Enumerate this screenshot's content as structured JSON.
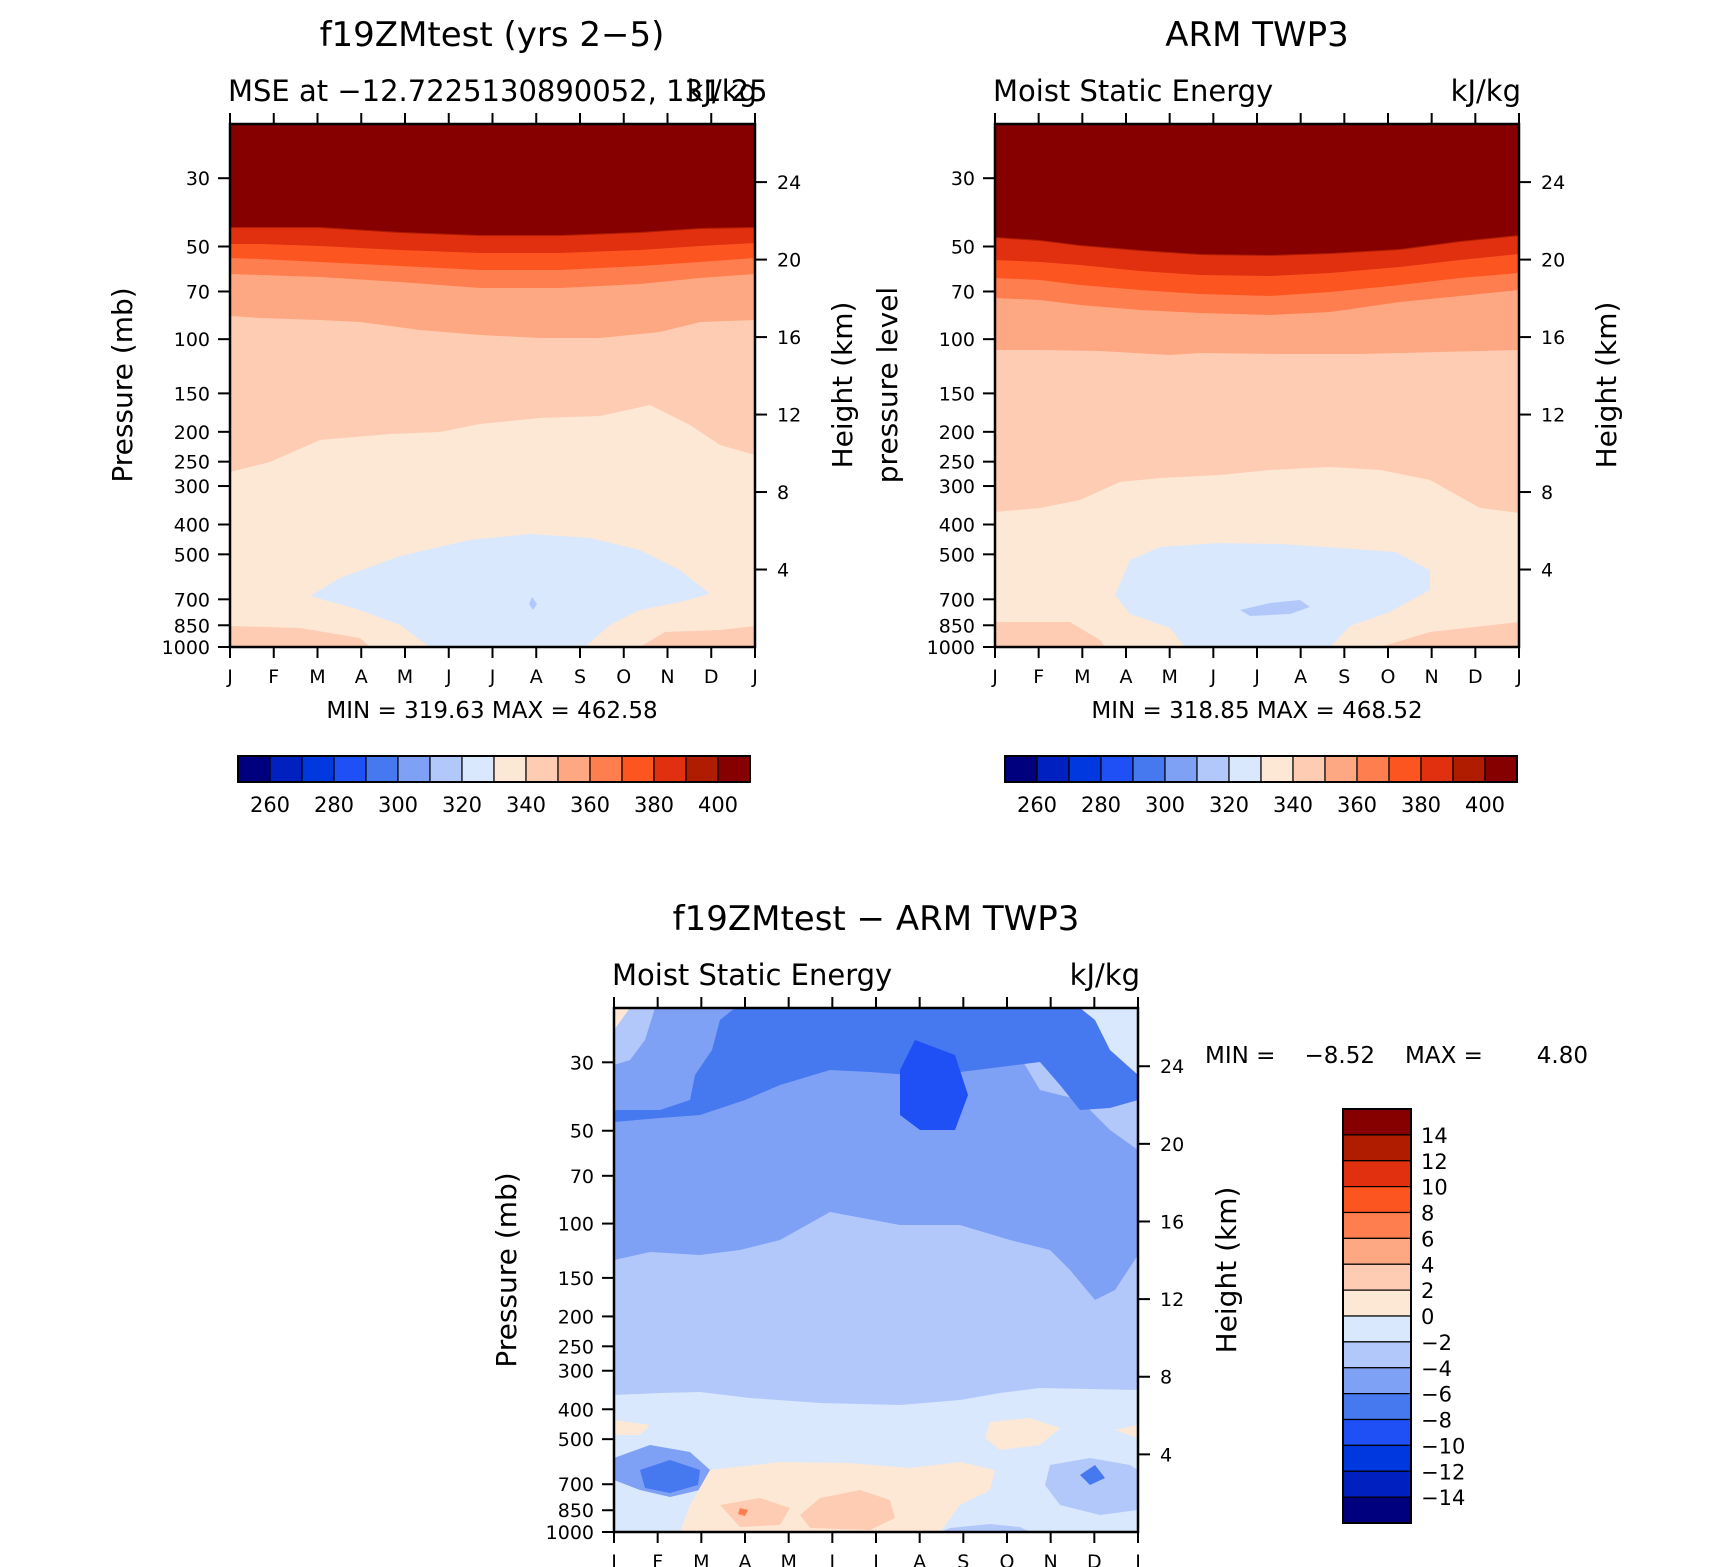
{
  "chart_data": [
    {
      "type": "contour",
      "title": "f19ZMtest (yrs 2−5)",
      "subtitle_left": "MSE at −12.7225130890052, 131.25",
      "subtitle_right": "kJ/kg",
      "ylabel_left": "Pressure (mb)",
      "ylabel_right": "Height (km)",
      "x_ticks": [
        "J",
        "F",
        "M",
        "A",
        "M",
        "J",
        "J",
        "A",
        "S",
        "O",
        "N",
        "D",
        "J"
      ],
      "y_ticks": [
        30,
        50,
        70,
        100,
        150,
        200,
        250,
        300,
        400,
        500,
        700,
        850,
        1000
      ],
      "height_ticks": [
        24,
        20,
        16,
        12,
        8,
        4
      ],
      "stats": "MIN = 319.63 MAX = 462.58",
      "colorbar": {
        "orientation": "horizontal",
        "labels": [
          "260",
          "280",
          "300",
          "320",
          "340",
          "360",
          "380",
          "400"
        ],
        "colors": [
          "#00007f",
          "#0020c0",
          "#0038e0",
          "#1e50f5",
          "#4678f0",
          "#7ea0f5",
          "#b3c8fa",
          "#d9e8fc",
          "#fde8d6",
          "#fdccb3",
          "#fda882",
          "#fe7e50",
          "#fd5520",
          "#e03010",
          "#b01c00",
          "#870000"
        ]
      },
      "min": 319.63,
      "max": 462.58,
      "ylim": [
        1000,
        20
      ]
    },
    {
      "type": "contour",
      "title": "ARM TWP3",
      "subtitle_left": "Moist Static Energy",
      "subtitle_right": "kJ/kg",
      "ylabel_left": "pressure level",
      "ylabel_right": "Height (km)",
      "x_ticks": [
        "J",
        "F",
        "M",
        "A",
        "M",
        "J",
        "J",
        "A",
        "S",
        "O",
        "N",
        "D",
        "J"
      ],
      "y_ticks": [
        30,
        50,
        70,
        100,
        150,
        200,
        250,
        300,
        400,
        500,
        700,
        850,
        1000
      ],
      "height_ticks": [
        24,
        20,
        16,
        12,
        8,
        4
      ],
      "stats": "MIN = 318.85 MAX = 468.52",
      "colorbar": {
        "orientation": "horizontal",
        "labels": [
          "260",
          "280",
          "300",
          "320",
          "340",
          "360",
          "380",
          "400"
        ],
        "colors": [
          "#00007f",
          "#0020c0",
          "#0038e0",
          "#1e50f5",
          "#4678f0",
          "#7ea0f5",
          "#b3c8fa",
          "#d9e8fc",
          "#fde8d6",
          "#fdccb3",
          "#fda882",
          "#fe7e50",
          "#fd5520",
          "#e03010",
          "#b01c00",
          "#870000"
        ]
      },
      "min": 318.85,
      "max": 468.52,
      "ylim": [
        1000,
        20
      ]
    },
    {
      "type": "contour",
      "title": "f19ZMtest − ARM TWP3",
      "subtitle_left": "Moist Static Energy",
      "subtitle_right": "kJ/kg",
      "ylabel_left": "Pressure (mb)",
      "ylabel_right": "Height (km)",
      "x_ticks": [
        "J",
        "F",
        "M",
        "A",
        "M",
        "J",
        "J",
        "A",
        "S",
        "O",
        "N",
        "D",
        "J"
      ],
      "y_ticks": [
        30,
        50,
        70,
        100,
        150,
        200,
        250,
        300,
        400,
        500,
        700,
        850,
        1000
      ],
      "height_ticks": [
        24,
        20,
        16,
        12,
        8,
        4
      ],
      "stats_min_label": "MIN =",
      "stats_min": "−8.52",
      "stats_max_label": "MAX =",
      "stats_max": "4.80",
      "colorbar": {
        "orientation": "vertical",
        "labels": [
          "14",
          "12",
          "10",
          "8",
          "6",
          "4",
          "2",
          "0",
          "−2",
          "−4",
          "−6",
          "−8",
          "−10",
          "−12",
          "−14"
        ],
        "colors": [
          "#870000",
          "#b01c00",
          "#e03010",
          "#fd5520",
          "#fe7e50",
          "#fda882",
          "#fdccb3",
          "#fde8d6",
          "#d9e8fc",
          "#b3c8fa",
          "#7ea0f5",
          "#4678f0",
          "#1e50f5",
          "#0038e0",
          "#0020c0",
          "#00007f"
        ]
      },
      "min": -8.52,
      "max": 4.8,
      "ylim": [
        1000,
        20
      ]
    }
  ]
}
